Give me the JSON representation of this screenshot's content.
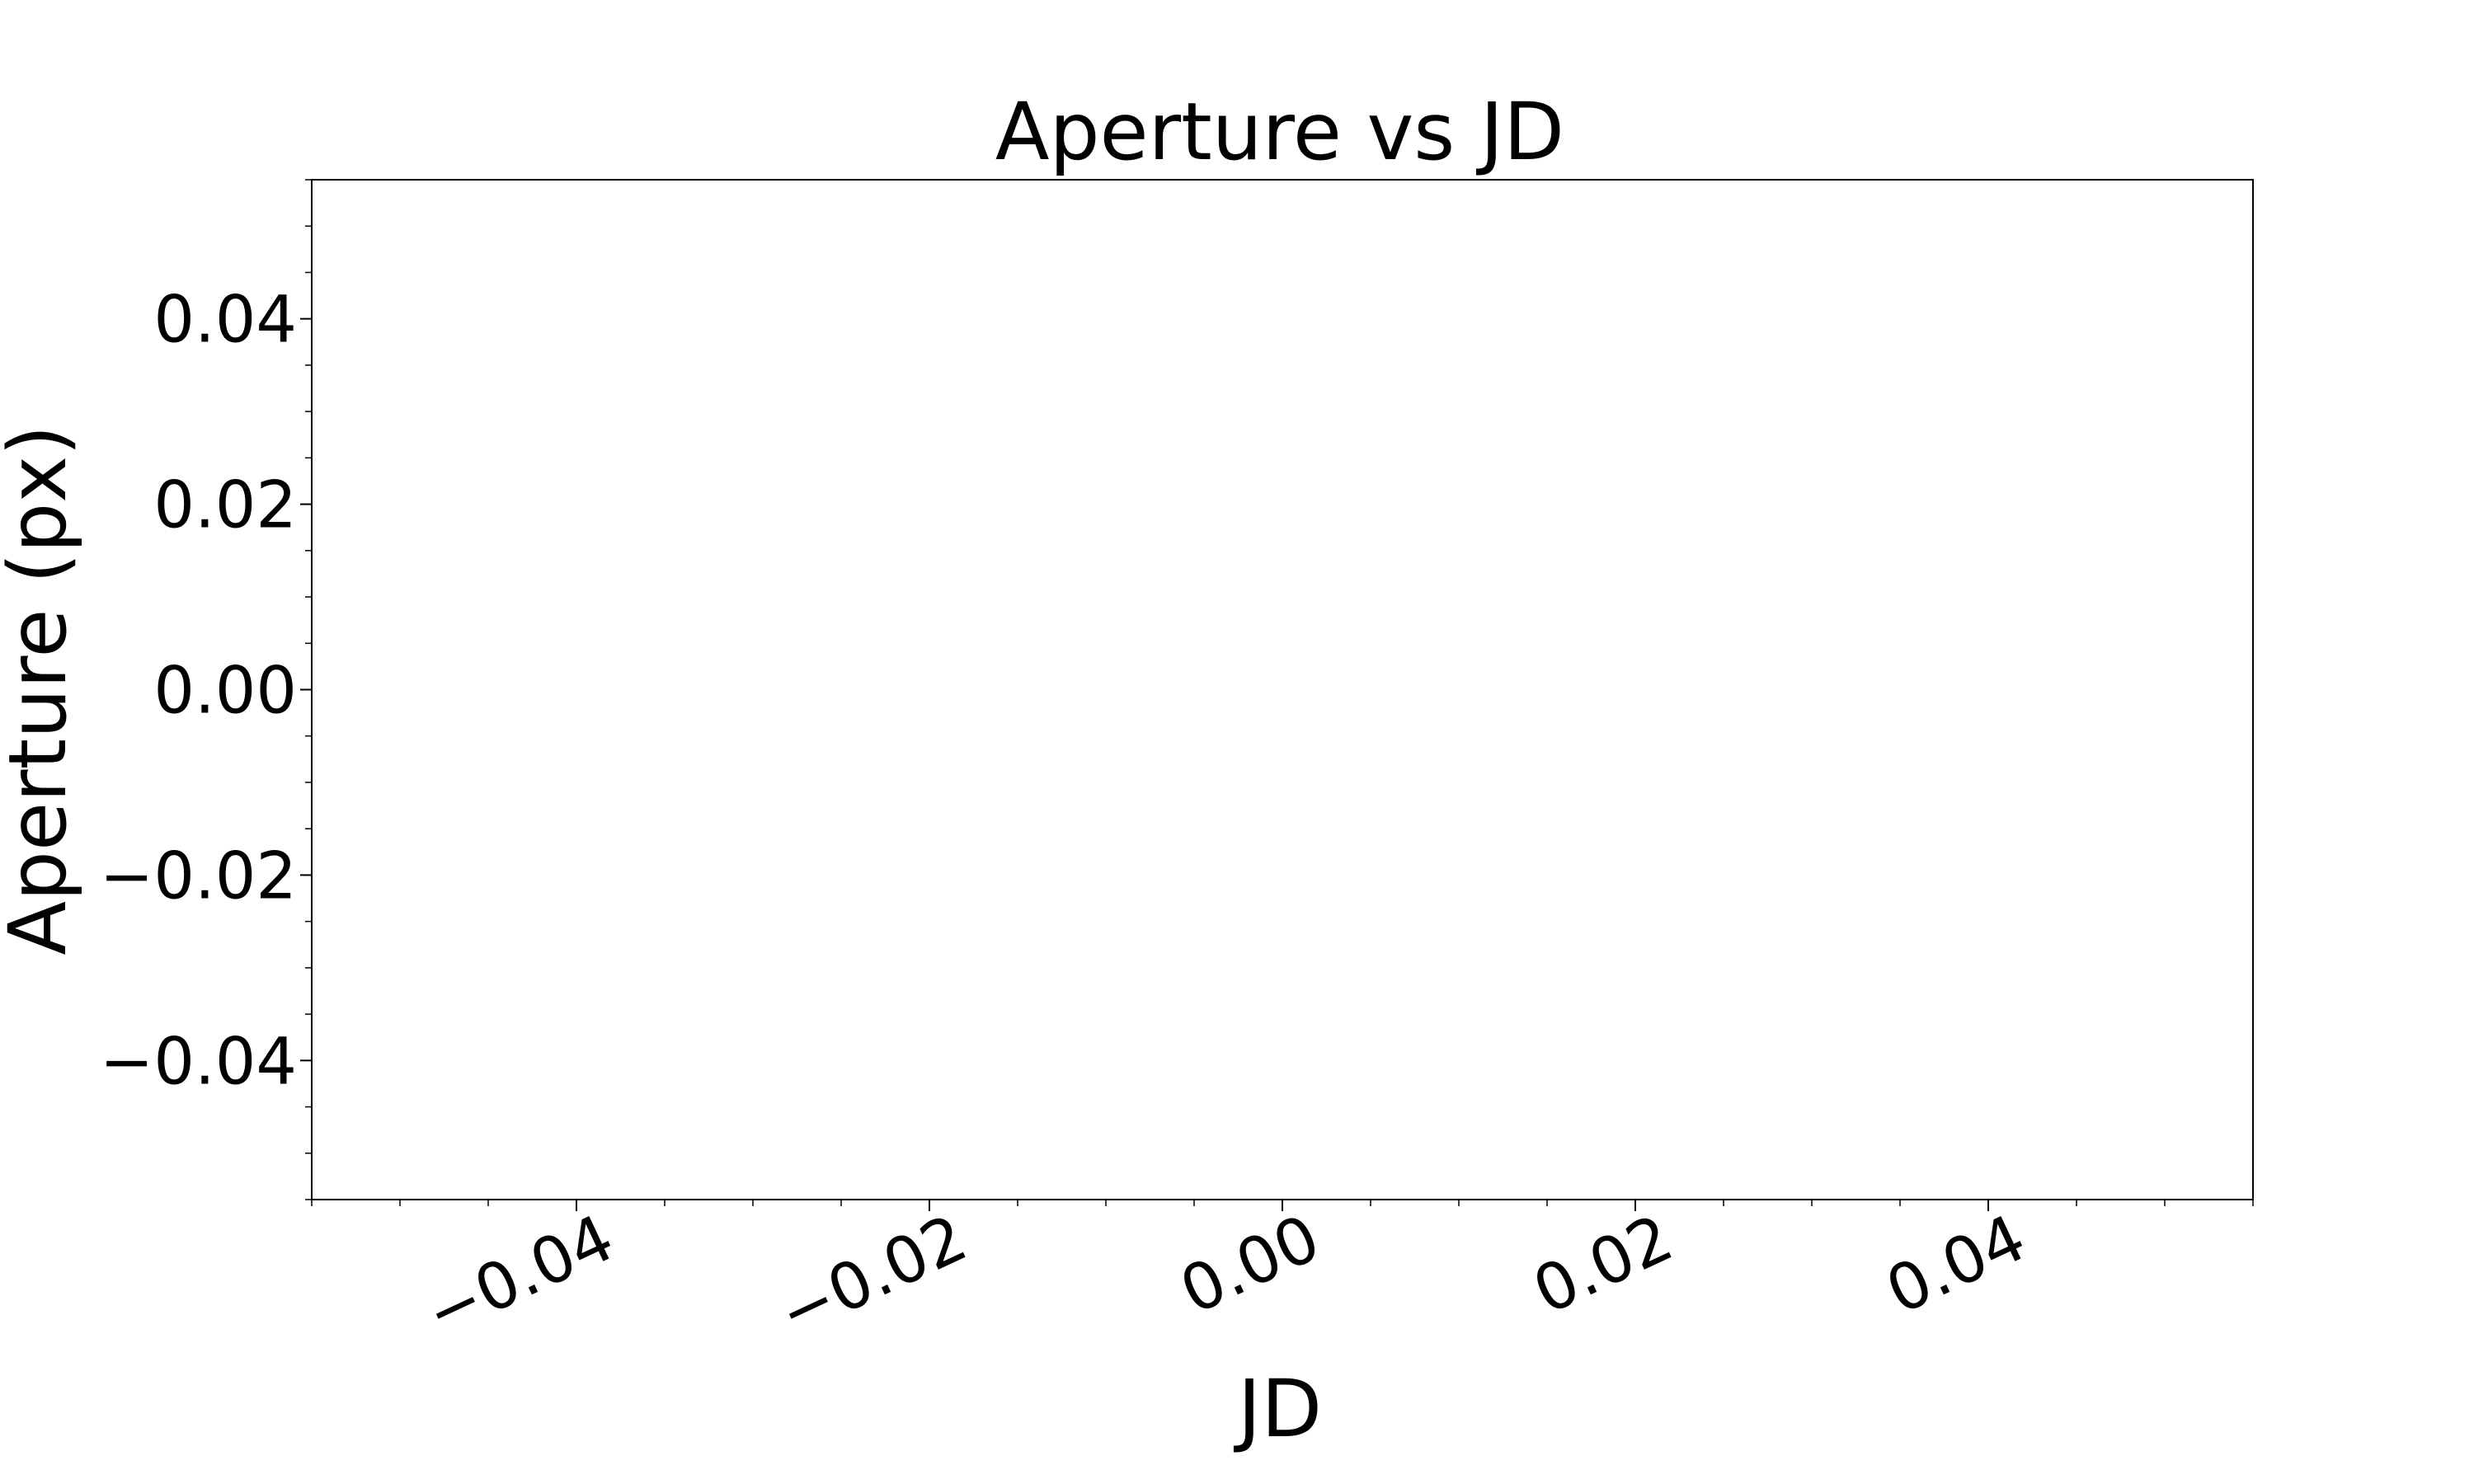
{
  "chart_data": {
    "type": "scatter",
    "title": "Aperture vs JD",
    "xlabel": "JD",
    "ylabel": "Aperture (px)",
    "xlim": [
      -0.055,
      0.055
    ],
    "ylim": [
      -0.055,
      0.055
    ],
    "x_ticks": [
      -0.04,
      -0.02,
      0.0,
      0.02,
      0.04
    ],
    "x_tick_labels": [
      "−0.04",
      "−0.02",
      "0.00",
      "0.02",
      "0.04"
    ],
    "x_minor_step": 0.005,
    "y_ticks": [
      -0.04,
      -0.02,
      0.0,
      0.02,
      0.04
    ],
    "y_tick_labels": [
      "−0.04",
      "−0.02",
      "0.00",
      "0.02",
      "0.04"
    ],
    "y_minor_step": 0.005,
    "x_tick_label_rotation_deg": -25,
    "grid": false,
    "series": [
      {
        "x": [],
        "y": []
      }
    ],
    "colors": {
      "axes": "#000000",
      "background": "#ffffff"
    }
  }
}
